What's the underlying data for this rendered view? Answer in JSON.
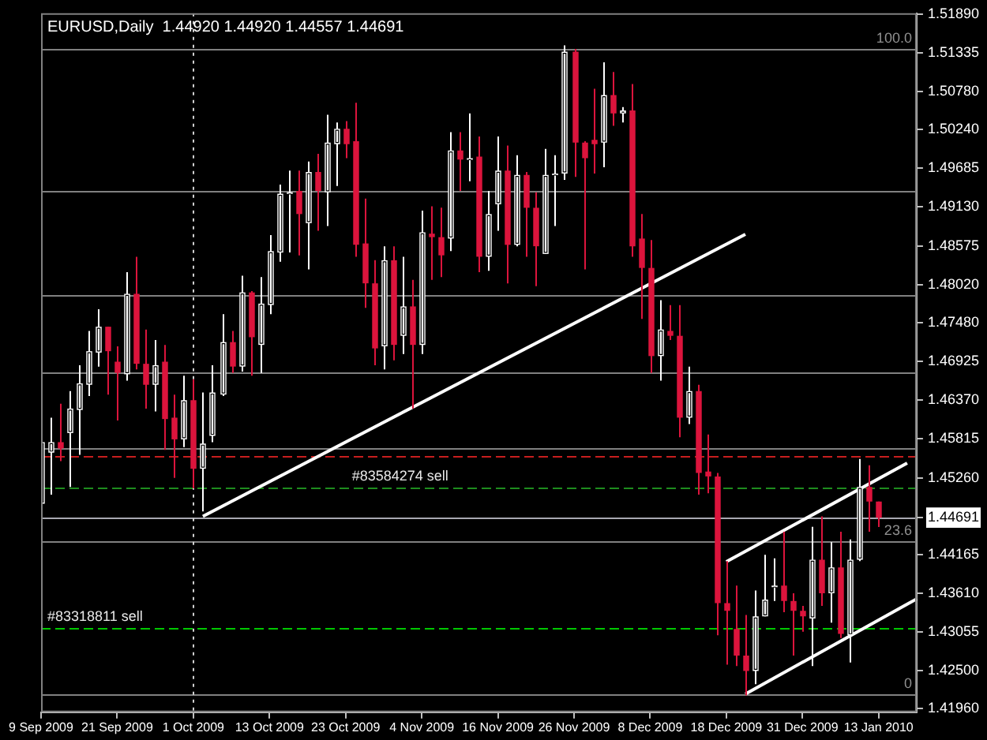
{
  "chart_data": {
    "type": "candlestick",
    "title": "EURUSD,Daily  1.44920 1.44920 1.44557 1.44691",
    "categories": [
      "9 Sep 2009",
      null,
      null,
      null,
      null,
      null,
      null,
      null,
      "21 Sep 2009",
      null,
      null,
      null,
      null,
      null,
      null,
      null,
      "1 Oct 2009",
      null,
      null,
      null,
      null,
      null,
      null,
      null,
      "13 Oct 2009",
      null,
      null,
      null,
      null,
      null,
      null,
      null,
      "23 Oct 2009",
      null,
      null,
      null,
      null,
      null,
      null,
      null,
      "4 Nov 2009",
      null,
      null,
      null,
      null,
      null,
      null,
      null,
      "16 Nov 2009",
      null,
      null,
      null,
      null,
      null,
      null,
      null,
      "26 Nov 2009",
      null,
      null,
      null,
      null,
      null,
      null,
      null,
      "8 Dec 2009",
      null,
      null,
      null,
      null,
      null,
      null,
      null,
      "18 Dec 2009",
      null,
      null,
      null,
      null,
      null,
      null,
      null,
      "31 Dec 2009",
      null,
      null,
      null,
      null,
      null,
      null,
      null,
      "13 Jan 2010",
      null,
      null,
      null,
      null
    ],
    "ohlc": [
      [
        1.4489,
        1.4603,
        1.4467,
        1.4577
      ],
      [
        1.4562,
        1.4612,
        1.4502,
        1.4577
      ],
      [
        1.4577,
        1.4632,
        1.455,
        1.4568
      ],
      [
        1.459,
        1.465,
        1.4513,
        1.4625
      ],
      [
        1.4623,
        1.4687,
        1.4559,
        1.4661
      ],
      [
        1.4659,
        1.4736,
        1.4643,
        1.4707
      ],
      [
        1.4705,
        1.4767,
        1.4685,
        1.4742
      ],
      [
        1.4742,
        1.4742,
        1.4645,
        1.4707
      ],
      [
        1.4692,
        1.4714,
        1.4608,
        1.4676
      ],
      [
        1.4674,
        1.482,
        1.4665,
        1.4789
      ],
      [
        1.4789,
        1.4842,
        1.4681,
        1.4689
      ],
      [
        1.4689,
        1.4738,
        1.4625,
        1.4659
      ],
      [
        1.4659,
        1.4723,
        1.4621,
        1.4687
      ],
      [
        1.4692,
        1.4716,
        1.4566,
        1.461
      ],
      [
        1.4612,
        1.4645,
        1.4526,
        1.4581
      ],
      [
        1.4581,
        1.4672,
        1.457,
        1.4637
      ],
      [
        1.4637,
        1.4667,
        1.4511,
        1.4539
      ],
      [
        1.4539,
        1.4648,
        1.4478,
        1.4575
      ],
      [
        1.4586,
        1.4687,
        1.4577,
        1.4648
      ],
      [
        1.4645,
        1.476,
        1.4643,
        1.472
      ],
      [
        1.472,
        1.4736,
        1.4676,
        1.4685
      ],
      [
        1.4685,
        1.4815,
        1.4678,
        1.4791
      ],
      [
        1.4791,
        1.4793,
        1.4672,
        1.4727
      ],
      [
        1.4716,
        1.4813,
        1.4676,
        1.4775
      ],
      [
        1.4773,
        1.4873,
        1.476,
        1.485
      ],
      [
        1.4848,
        1.4945,
        1.4835,
        1.4932
      ],
      [
        1.4932,
        1.4965,
        1.4848,
        1.4934
      ],
      [
        1.4936,
        1.4965,
        1.4844,
        1.4903
      ],
      [
        1.489,
        1.4978,
        1.4824,
        1.4963
      ],
      [
        1.4963,
        1.4989,
        1.4879,
        1.4936
      ],
      [
        1.4934,
        1.5045,
        1.4886,
        1.5005
      ],
      [
        1.5003,
        1.5034,
        1.4943,
        1.5025
      ],
      [
        1.5025,
        1.5036,
        1.4983,
        1.5003
      ],
      [
        1.5007,
        1.5062,
        1.4842,
        1.4859
      ],
      [
        1.4861,
        1.4925,
        1.4769,
        1.4804
      ],
      [
        1.4804,
        1.4837,
        1.4687,
        1.4711
      ],
      [
        1.4714,
        1.4857,
        1.4681,
        1.4837
      ],
      [
        1.4837,
        1.4857,
        1.4694,
        1.4716
      ],
      [
        1.4729,
        1.4842,
        1.4703,
        1.4771
      ],
      [
        1.4771,
        1.4809,
        1.4625,
        1.4716
      ],
      [
        1.4716,
        1.4908,
        1.4703,
        1.4877
      ],
      [
        1.4875,
        1.4914,
        1.4809,
        1.487
      ],
      [
        1.487,
        1.4912,
        1.4813,
        1.4844
      ],
      [
        1.4868,
        1.502,
        1.485,
        1.4994
      ],
      [
        1.4994,
        1.502,
        1.4936,
        1.4981
      ],
      [
        1.4981,
        1.5047,
        1.495,
        1.4983
      ],
      [
        1.4985,
        1.5014,
        1.482,
        1.4842
      ],
      [
        1.4842,
        1.4936,
        1.4822,
        1.4903
      ],
      [
        1.4917,
        1.5014,
        1.4879,
        1.4965
      ],
      [
        1.4965,
        1.5001,
        1.4804,
        1.4859
      ],
      [
        1.4859,
        1.4987,
        1.4857,
        1.4959
      ],
      [
        1.4959,
        1.4963,
        1.4842,
        1.4912
      ],
      [
        1.4912,
        1.4934,
        1.48,
        1.4857
      ],
      [
        1.4846,
        1.4996,
        1.4846,
        1.4959
      ],
      [
        1.4959,
        1.4987,
        1.4886,
        1.4961
      ],
      [
        1.4961,
        1.5144,
        1.4952,
        1.5135
      ],
      [
        1.5135,
        1.5139,
        1.4956,
        1.5005
      ],
      [
        1.5005,
        1.5007,
        1.4824,
        1.4983
      ],
      [
        1.5009,
        1.5082,
        1.4961,
        1.5003
      ],
      [
        1.5005,
        1.512,
        1.497,
        1.5073
      ],
      [
        1.5073,
        1.5106,
        1.5029,
        1.5047
      ],
      [
        1.5047,
        1.5056,
        1.5034,
        1.5051
      ],
      [
        1.5051,
        1.5089,
        1.4842,
        1.4857
      ],
      [
        1.4868,
        1.4903,
        1.4753,
        1.4826
      ],
      [
        1.4826,
        1.4866,
        1.4676,
        1.47
      ],
      [
        1.47,
        1.478,
        1.4665,
        1.4738
      ],
      [
        1.4736,
        1.4773,
        1.4723,
        1.4729
      ],
      [
        1.4729,
        1.4773,
        1.4584,
        1.4612
      ],
      [
        1.4612,
        1.4685,
        1.4603,
        1.465
      ],
      [
        1.465,
        1.4659,
        1.4502,
        1.4533
      ],
      [
        1.4535,
        1.4588,
        1.4504,
        1.4528
      ],
      [
        1.4528,
        1.4533,
        1.4301,
        1.4347
      ],
      [
        1.4347,
        1.4407,
        1.4259,
        1.4336
      ],
      [
        1.431,
        1.4372,
        1.4257,
        1.4272
      ],
      [
        1.4272,
        1.433,
        1.4215,
        1.425
      ],
      [
        1.425,
        1.4365,
        1.4231,
        1.4328
      ],
      [
        1.4328,
        1.4416,
        1.4328,
        1.4352
      ],
      [
        1.437,
        1.4411,
        1.435,
        1.4372
      ],
      [
        1.4372,
        1.4449,
        1.4334,
        1.435
      ],
      [
        1.435,
        1.4361,
        1.4272,
        1.4336
      ],
      [
        1.4336,
        1.4343,
        1.4306,
        1.4328
      ],
      [
        1.4325,
        1.4456,
        1.4257,
        1.4409
      ],
      [
        1.4409,
        1.4471,
        1.4343,
        1.4361
      ],
      [
        1.4361,
        1.4434,
        1.4319,
        1.4398
      ],
      [
        1.4398,
        1.4449,
        1.4297,
        1.4303
      ],
      [
        1.4301,
        1.4438,
        1.4262,
        1.4409
      ],
      [
        1.4409,
        1.4553,
        1.4407,
        1.4513
      ],
      [
        1.4513,
        1.4544,
        1.4449,
        1.4492
      ],
      [
        1.4492,
        1.4492,
        1.44557,
        1.44691
      ],
      null,
      null,
      null,
      null
    ],
    "colors": [
      "#ffffff",
      "#ffffff",
      "#dc143c",
      "#ffffff",
      "#ffffff",
      "#ffffff",
      "#ffffff",
      "#dc143c",
      "#dc143c",
      "#ffffff",
      "#dc143c",
      "#dc143c",
      "#ffffff",
      "#dc143c",
      "#dc143c",
      "#ffffff",
      "#dc143c",
      "#ffffff",
      "#ffffff",
      "#ffffff",
      "#dc143c",
      "#ffffff",
      "#dc143c",
      "#ffffff",
      "#ffffff",
      "#ffffff",
      "#ffffff",
      "#dc143c",
      "#ffffff",
      "#dc143c",
      "#ffffff",
      "#ffffff",
      "#dc143c",
      "#dc143c",
      "#dc143c",
      "#dc143c",
      "#ffffff",
      "#dc143c",
      "#ffffff",
      "#dc143c",
      "#ffffff",
      "#dc143c",
      "#dc143c",
      "#ffffff",
      "#dc143c",
      "#ffffff",
      "#dc143c",
      "#ffffff",
      "#ffffff",
      "#dc143c",
      "#ffffff",
      "#dc143c",
      "#dc143c",
      "#ffffff",
      "#ffffff",
      "#ffffff",
      "#dc143c",
      "#dc143c",
      "#dc143c",
      "#ffffff",
      "#dc143c",
      "#ffffff",
      "#dc143c",
      "#dc143c",
      "#dc143c",
      "#ffffff",
      "#dc143c",
      "#dc143c",
      "#ffffff",
      "#dc143c",
      "#dc143c",
      "#dc143c",
      "#dc143c",
      "#dc143c",
      "#dc143c",
      "#ffffff",
      "#ffffff",
      "#ffffff",
      "#dc143c",
      "#dc143c",
      "#dc143c",
      "#ffffff",
      "#dc143c",
      "#ffffff",
      "#dc143c",
      "#ffffff",
      "#ffffff",
      "#dc143c",
      "#dc143c",
      null,
      null,
      null,
      null
    ],
    "series": [
      {
        "type": "line",
        "color": "#ffffff",
        "values": [
          null,
          null,
          null,
          null,
          null,
          null,
          null,
          null,
          null,
          null,
          null,
          null,
          null,
          null,
          null,
          null,
          null,
          1.4471,
          null,
          null,
          null,
          null,
          null,
          null,
          null,
          null,
          null,
          null,
          null,
          null,
          null,
          null,
          null,
          null,
          null,
          null,
          null,
          null,
          null,
          null,
          null,
          null,
          null,
          null,
          null,
          null,
          null,
          null,
          null,
          null,
          null,
          null,
          null,
          null,
          null,
          null,
          null,
          null,
          null,
          null,
          null,
          null,
          null,
          null,
          null,
          null,
          null,
          null,
          null,
          null,
          null,
          null,
          null,
          null,
          1.4874,
          null,
          null,
          null,
          null,
          null,
          null,
          null,
          null,
          null,
          null,
          null,
          null,
          null,
          null,
          null,
          null,
          null,
          null
        ]
      },
      {
        "type": "line",
        "color": "#ffffff",
        "values": [
          null,
          null,
          null,
          null,
          null,
          null,
          null,
          null,
          null,
          null,
          null,
          null,
          null,
          null,
          null,
          null,
          null,
          null,
          null,
          null,
          null,
          null,
          null,
          null,
          null,
          null,
          null,
          null,
          null,
          null,
          null,
          null,
          null,
          null,
          null,
          null,
          null,
          null,
          null,
          null,
          null,
          null,
          null,
          null,
          null,
          null,
          null,
          null,
          null,
          null,
          null,
          null,
          null,
          null,
          null,
          null,
          null,
          null,
          null,
          null,
          null,
          null,
          null,
          null,
          null,
          null,
          null,
          null,
          null,
          null,
          null,
          null,
          1.4406,
          null,
          null,
          null,
          null,
          null,
          null,
          null,
          null,
          null,
          null,
          null,
          null,
          null,
          null,
          null,
          null,
          null,
          null,
          1.4547,
          null
        ]
      },
      {
        "type": "line",
        "color": "#ffffff",
        "values": [
          null,
          null,
          null,
          null,
          null,
          null,
          null,
          null,
          null,
          null,
          null,
          null,
          null,
          null,
          null,
          null,
          null,
          null,
          null,
          null,
          null,
          null,
          null,
          null,
          null,
          null,
          null,
          null,
          null,
          null,
          null,
          null,
          null,
          null,
          null,
          null,
          null,
          null,
          null,
          null,
          null,
          null,
          null,
          null,
          null,
          null,
          null,
          null,
          null,
          null,
          null,
          null,
          null,
          null,
          null,
          null,
          null,
          null,
          null,
          null,
          null,
          null,
          null,
          null,
          null,
          null,
          null,
          null,
          null,
          null,
          null,
          null,
          null,
          null,
          1.4217,
          null,
          null,
          null,
          null,
          null,
          null,
          null,
          null,
          null,
          null,
          null,
          null,
          null,
          null,
          null,
          null,
          null,
          1.4353
        ]
      }
    ],
    "ylim": [
      1.4191,
      1.519
    ],
    "yticks": [
      {
        "value": 1.5189,
        "label": "1.51890"
      },
      {
        "value": 1.51335,
        "label": "1.51335"
      },
      {
        "value": 1.5078,
        "label": "1.50780"
      },
      {
        "value": 1.5024,
        "label": "1.50240"
      },
      {
        "value": 1.49685,
        "label": "1.49685"
      },
      {
        "value": 1.4913,
        "label": "1.49130"
      },
      {
        "value": 1.48575,
        "label": "1.48575"
      },
      {
        "value": 1.4802,
        "label": "1.48020"
      },
      {
        "value": 1.4748,
        "label": "1.47480"
      },
      {
        "value": 1.46925,
        "label": "1.46925"
      },
      {
        "value": 1.4637,
        "label": "1.46370"
      },
      {
        "value": 1.45815,
        "label": "1.45815"
      },
      {
        "value": 1.4526,
        "label": "1.45260"
      },
      {
        "value": 1.44691,
        "label": "1.44691"
      },
      {
        "value": 1.44165,
        "label": "1.44165"
      },
      {
        "value": 1.4361,
        "label": "1.43610"
      },
      {
        "value": 1.43055,
        "label": "1.43055"
      },
      {
        "value": 1.425,
        "label": "1.42500"
      },
      {
        "value": 1.4196,
        "label": "1.41960"
      }
    ],
    "ref_lines": [
      {
        "axis": "y",
        "value": 1.5139,
        "color": "#808080",
        "line_style": "solid"
      },
      {
        "axis": "y",
        "value": 1.4936,
        "color": "#808080",
        "line_style": "solid"
      },
      {
        "axis": "y",
        "value": 1.4787,
        "color": "#808080",
        "line_style": "solid"
      },
      {
        "axis": "y",
        "value": 1.4676,
        "color": "#808080",
        "line_style": "solid"
      },
      {
        "axis": "y",
        "value": 1.4568,
        "color": "#808080",
        "line_style": "solid"
      },
      {
        "axis": "y",
        "value": 1.4435,
        "color": "#808080",
        "line_style": "solid"
      },
      {
        "axis": "y",
        "value": 1.4217,
        "color": "#808080",
        "line_style": "solid"
      },
      {
        "axis": "y",
        "value": 1.4557,
        "color": "#c81e1e",
        "line_style": "dashed"
      },
      {
        "axis": "y",
        "value": 1.4513,
        "color": "#1e8c1e",
        "line_style": "dashed"
      },
      {
        "axis": "y",
        "value": 1.4312,
        "color": "#00c800",
        "line_style": "dashed"
      },
      {
        "axis": "y",
        "value": 1.44691,
        "color": "#a8a8b0",
        "line_style": "solid"
      },
      {
        "axis": "x",
        "value": "1 Oct 2009",
        "color": "#d0d0d0",
        "line_style": "dotted"
      }
    ],
    "annotations": [
      {
        "text": "100.0",
        "y": 1.5139
      },
      {
        "text": "23.6",
        "y": 1.4435
      },
      {
        "text": "0",
        "y": 1.4217
      },
      {
        "text": "#83584274 sell",
        "x": "23 Oct 2009",
        "y": 1.4513
      },
      {
        "text": "#83318811 sell",
        "x": "9 Sep 2009",
        "y": 1.4312
      }
    ]
  }
}
